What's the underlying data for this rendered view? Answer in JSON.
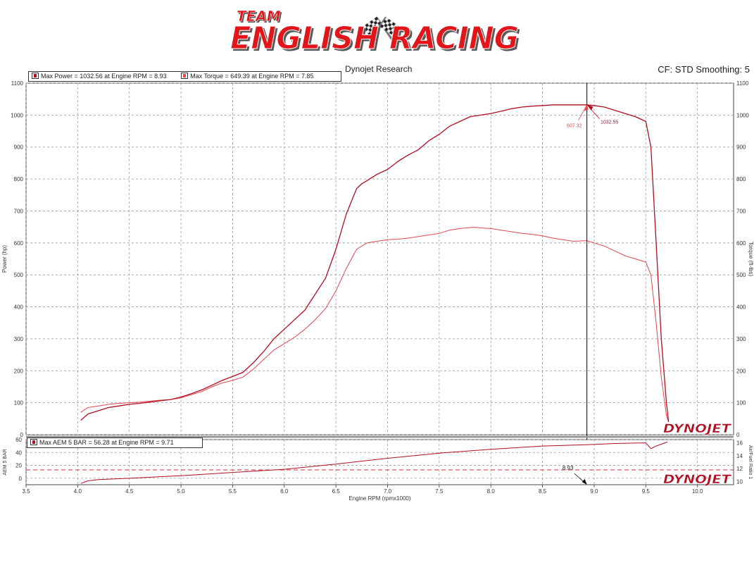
{
  "logo": {
    "small_text": "TEAM",
    "big_text": "ENGLISH RACING",
    "fill": "#e0161b",
    "shadow": "#5a5a5a"
  },
  "header": {
    "center_title": "Dynojet Research",
    "right_info": "CF: STD Smoothing: 5"
  },
  "colors": {
    "power": "#b10d1f",
    "torque": "#e0474e",
    "afr_limit": "#d62b35",
    "cursor": "#000000",
    "grid": "#999999"
  },
  "chart_data": [
    {
      "type": "line",
      "name": "power-torque",
      "xlabel": "Engine RPM (rpmx1000)",
      "ylabel": "Power (hp)",
      "y2label": "Torque (ft-lbs)",
      "xlim": [
        3.5,
        10.35
      ],
      "ylim": [
        0,
        1100
      ],
      "y2lim": [
        0,
        1100
      ],
      "x_ticks": [
        "3.5",
        "4.0",
        "4.5",
        "5.0",
        "5.5",
        "6.0",
        "6.5",
        "7.0",
        "7.5",
        "8.0",
        "8.5",
        "9.0",
        "9.5",
        "10.0"
      ],
      "y_ticks": [
        "0",
        "100",
        "200",
        "300",
        "400",
        "500",
        "600",
        "700",
        "800",
        "900",
        "1000",
        "1100"
      ],
      "grid": true,
      "legend": [
        {
          "text": "Max Power = 1032.56 at Engine RPM = 8.93"
        },
        {
          "text": "Max Torque = 649.39 at Engine RPM = 7.85"
        }
      ],
      "cursor_x": 8.93,
      "annotations": [
        {
          "text": "607.32",
          "x": 8.93,
          "y": 607.32,
          "series": "torque"
        },
        {
          "text": "1032.55",
          "x": 8.93,
          "y": 1032.55,
          "series": "power"
        }
      ],
      "series": [
        {
          "axis": "left",
          "x": [
            4.03,
            4.1,
            4.2,
            4.3,
            4.4,
            4.5,
            4.6,
            4.7,
            4.8,
            4.9,
            5.0,
            5.1,
            5.2,
            5.3,
            5.4,
            5.5,
            5.6,
            5.7,
            5.8,
            5.9,
            6.0,
            6.1,
            6.2,
            6.3,
            6.4,
            6.5,
            6.6,
            6.7,
            6.75,
            6.8,
            6.9,
            7.0,
            7.1,
            7.2,
            7.3,
            7.4,
            7.5,
            7.6,
            7.7,
            7.8,
            7.9,
            8.0,
            8.1,
            8.2,
            8.3,
            8.4,
            8.5,
            8.6,
            8.7,
            8.8,
            8.93,
            9.0,
            9.1,
            9.2,
            9.3,
            9.4,
            9.5,
            9.55,
            9.6,
            9.65,
            9.7,
            9.72
          ],
          "values": [
            45,
            65,
            75,
            85,
            90,
            95,
            98,
            102,
            106,
            110,
            118,
            128,
            140,
            155,
            170,
            182,
            195,
            225,
            260,
            300,
            330,
            360,
            390,
            440,
            490,
            580,
            690,
            770,
            785,
            795,
            815,
            830,
            855,
            875,
            892,
            920,
            940,
            965,
            980,
            995,
            1000,
            1005,
            1012,
            1020,
            1025,
            1028,
            1030,
            1032,
            1032,
            1032,
            1032,
            1030,
            1025,
            1015,
            1005,
            995,
            980,
            900,
            600,
            300,
            100,
            40
          ]
        },
        {
          "axis": "right",
          "x": [
            4.03,
            4.1,
            4.2,
            4.3,
            4.4,
            4.5,
            4.6,
            4.7,
            4.8,
            4.9,
            5.0,
            5.1,
            5.2,
            5.3,
            5.4,
            5.5,
            5.6,
            5.7,
            5.8,
            5.9,
            6.0,
            6.1,
            6.2,
            6.3,
            6.4,
            6.5,
            6.6,
            6.7,
            6.8,
            6.9,
            7.0,
            7.1,
            7.2,
            7.3,
            7.4,
            7.5,
            7.6,
            7.7,
            7.8,
            7.85,
            7.9,
            8.0,
            8.1,
            8.2,
            8.3,
            8.4,
            8.5,
            8.6,
            8.7,
            8.8,
            8.93,
            9.0,
            9.1,
            9.2,
            9.3,
            9.4,
            9.5,
            9.55,
            9.6,
            9.65,
            9.7,
            9.72
          ],
          "values": [
            70,
            85,
            90,
            95,
            98,
            100,
            102,
            105,
            108,
            110,
            115,
            125,
            135,
            150,
            162,
            170,
            180,
            205,
            235,
            265,
            285,
            305,
            330,
            360,
            395,
            450,
            520,
            580,
            600,
            605,
            610,
            612,
            615,
            620,
            625,
            630,
            640,
            645,
            648,
            649,
            647,
            645,
            640,
            635,
            630,
            627,
            622,
            615,
            610,
            605,
            607,
            600,
            590,
            575,
            560,
            550,
            540,
            500,
            350,
            180,
            60,
            40
          ]
        }
      ]
    },
    {
      "type": "line",
      "name": "aem-afr",
      "ylabel": "AEM 5 BAR",
      "y2label": "Air/Fuel Ratio 1",
      "xlim": [
        3.5,
        10.35
      ],
      "ylim": [
        -10,
        60
      ],
      "y2lim": [
        9.5,
        16.5
      ],
      "y_ticks": [
        "0",
        "20",
        "40",
        "60"
      ],
      "y2_ticks": [
        "10",
        "12",
        "14",
        "16"
      ],
      "grid": true,
      "legend": [
        {
          "text": "Max AEM 5 BAR = 56.28 at Engine RPM = 9.71"
        }
      ],
      "cursor_label": "8.93",
      "reference_line_y2": 11.8,
      "series": [
        {
          "axis": "left",
          "x": [
            4.03,
            4.1,
            4.2,
            4.5,
            5.0,
            5.5,
            6.0,
            6.5,
            7.0,
            7.5,
            8.0,
            8.5,
            8.93,
            9.2,
            9.5,
            9.55,
            9.6,
            9.71
          ],
          "values": [
            -8,
            -4,
            -2,
            0,
            4,
            9,
            14,
            22,
            31,
            39,
            45,
            50,
            52,
            54,
            55,
            46,
            50,
            56.28
          ]
        }
      ]
    }
  ],
  "brand": {
    "text": "DYNOJET"
  }
}
